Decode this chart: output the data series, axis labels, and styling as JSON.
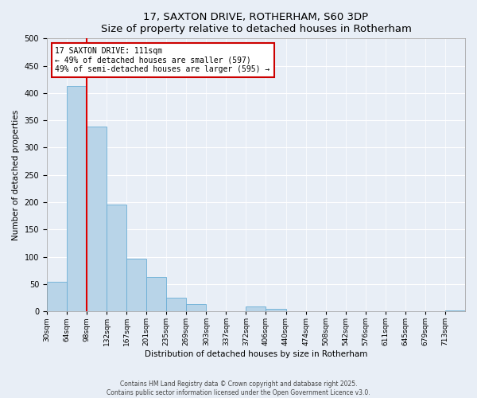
{
  "title": "17, SAXTON DRIVE, ROTHERHAM, S60 3DP",
  "subtitle": "Size of property relative to detached houses in Rotherham",
  "xlabel": "Distribution of detached houses by size in Rotherham",
  "ylabel": "Number of detached properties",
  "bar_labels": [
    "30sqm",
    "64sqm",
    "98sqm",
    "132sqm",
    "167sqm",
    "201sqm",
    "235sqm",
    "269sqm",
    "303sqm",
    "337sqm",
    "372sqm",
    "406sqm",
    "440sqm",
    "474sqm",
    "508sqm",
    "542sqm",
    "576sqm",
    "611sqm",
    "645sqm",
    "679sqm",
    "713sqm"
  ],
  "bar_values": [
    54,
    413,
    338,
    195,
    97,
    63,
    25,
    14,
    0,
    0,
    9,
    4,
    0,
    0,
    0,
    0,
    0,
    0,
    0,
    0,
    1
  ],
  "bar_color": "#b8d4e8",
  "bar_edge_color": "#6aaed6",
  "vline_x": 2.0,
  "vline_color": "#dd0000",
  "annotation_title": "17 SAXTON DRIVE: 111sqm",
  "annotation_line1": "← 49% of detached houses are smaller (597)",
  "annotation_line2": "49% of semi-detached houses are larger (595) →",
  "annotation_box_facecolor": "#ffffff",
  "annotation_box_edgecolor": "#cc0000",
  "ylim": [
    0,
    500
  ],
  "yticks": [
    0,
    50,
    100,
    150,
    200,
    250,
    300,
    350,
    400,
    450,
    500
  ],
  "footer1": "Contains HM Land Registry data © Crown copyright and database right 2025.",
  "footer2": "Contains public sector information licensed under the Open Government Licence v3.0.",
  "bg_color": "#e8eef6",
  "plot_bg_color": "#e8eef6",
  "grid_color": "#ffffff",
  "title_fontsize": 9.5,
  "tick_fontsize": 6.5,
  "axis_label_fontsize": 7.5,
  "annotation_fontsize": 7.0,
  "footer_fontsize": 5.5
}
